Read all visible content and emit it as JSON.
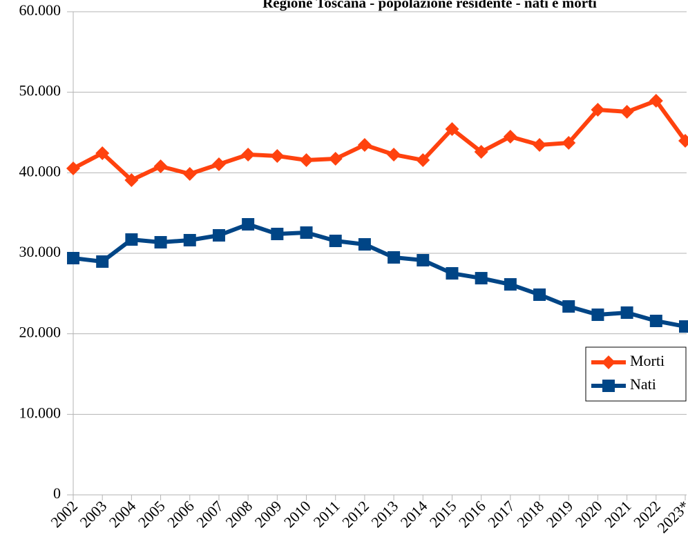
{
  "chart_data": {
    "type": "line",
    "title": "Regione Toscana - popolazione residente - nati e morti",
    "categories": [
      "2002",
      "2003",
      "2004",
      "2005",
      "2006",
      "2007",
      "2008",
      "2009",
      "2010",
      "2011",
      "2012",
      "2013",
      "2014",
      "2015",
      "2016",
      "2017",
      "2018",
      "2019",
      "2020",
      "2021",
      "2022",
      "2023*"
    ],
    "series": [
      {
        "name": "Morti",
        "color": "#ff420e",
        "marker": "diamond",
        "values": [
          40540,
          42430,
          39090,
          40800,
          39860,
          41060,
          42260,
          42090,
          41570,
          41740,
          43460,
          42260,
          41570,
          45430,
          42600,
          44490,
          43460,
          43710,
          47830,
          47570,
          48940,
          43970
        ]
      },
      {
        "name": "Nati",
        "color": "#004586",
        "marker": "square",
        "values": [
          29400,
          28970,
          31710,
          31370,
          31630,
          32230,
          33600,
          32400,
          32570,
          31540,
          31110,
          29490,
          29140,
          27510,
          26910,
          26140,
          24860,
          23400,
          22370,
          22630,
          21600,
          20910
        ]
      }
    ],
    "ylim": [
      0,
      60000
    ],
    "yticks": [
      0,
      {
        "value": 10000,
        "label": "10.000"
      },
      {
        "value": 20000,
        "label": "20.000"
      },
      {
        "value": 30000,
        "label": "30.000"
      },
      {
        "value": 40000,
        "label": "40.000"
      },
      {
        "value": 50000,
        "label": "50.000"
      },
      {
        "value": 60000,
        "label": "60.000"
      }
    ],
    "grid": true,
    "legend": "right"
  }
}
